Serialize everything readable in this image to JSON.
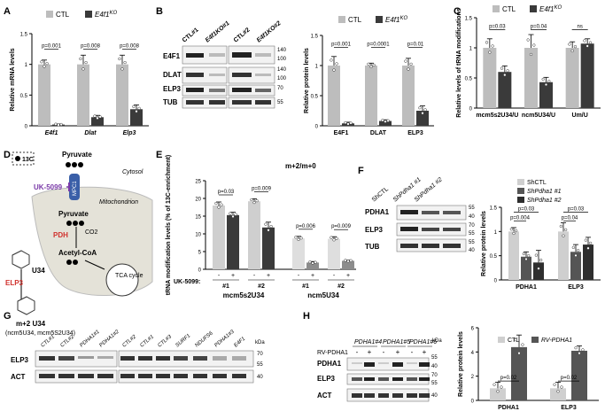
{
  "panels": {
    "A": "A",
    "B": "B",
    "C": "C",
    "D": "D",
    "E": "E",
    "F": "F",
    "G": "G",
    "H": "H"
  },
  "legend": {
    "ctl": "CTL",
    "ko_base": "E4f1",
    "ko_sup": "KO",
    "shctl": "ShCTL",
    "shpdha1_1": "ShPdha1 #1",
    "shpdha1_2": "ShPdha1 #2",
    "rv_pdha1": "RV-PDHA1"
  },
  "units": {
    "kda": "kDa"
  },
  "blot_B": {
    "lanes": [
      "CTL#1",
      "E4f1KO#1",
      "CTL#2",
      "E4f1KO#2"
    ],
    "rows": [
      "E4F1",
      "DLAT",
      "ELP3",
      "TUB"
    ],
    "markers": [
      "140",
      "100",
      "140",
      "100",
      "70",
      "55"
    ]
  },
  "diagram_D": {
    "legend_label": "13C",
    "pyruvate_top": "Pyruvate",
    "cytosol": "Cytosol",
    "inhibitor": "UK-5099",
    "transporter": "MPC1",
    "mitochondrion": "Mitochondrion",
    "pyruvate_mito": "Pyruvate",
    "pdh": "PDH",
    "co2": "CO2",
    "acetyl_coa": "Acetyl-CoA",
    "tca": "TCA cycle",
    "u34": "U34",
    "elp3": "ELP3",
    "product": "m+2 U34",
    "product_detail": "(ncm5U34, mcm5S2U34)"
  },
  "blot_F": {
    "lanes": [
      "ShCTL",
      "ShPdha1 #1",
      "ShPdha1 #2"
    ],
    "rows": [
      "PDHA1",
      "ELP3",
      "TUB"
    ],
    "markers": [
      "55",
      "40",
      "70",
      "55",
      "55",
      "40"
    ]
  },
  "blot_G": {
    "lanes_left": [
      "CTL#1",
      "CTL#2",
      "PDHA1#1",
      "PDHA1#2"
    ],
    "lanes_right": [
      "CTL#2",
      "CTL#1",
      "CTL#3",
      "SURF1",
      "NDUFS6",
      "PDHA1#3",
      "E4F1"
    ],
    "rows": [
      "ELP3",
      "ACT"
    ],
    "markers": [
      "70",
      "55",
      "40"
    ]
  },
  "blot_H": {
    "lanes": [
      "PDHA1#4",
      "PDHA1#5",
      "PDHA1#6"
    ],
    "rv_label": "RV-PDHA1",
    "signs": [
      "-",
      "+",
      "-",
      "+",
      "-",
      "+"
    ],
    "rows": [
      "PDHA1",
      "ELP3",
      "ACT"
    ],
    "markers": [
      "55",
      "40",
      "70",
      "55",
      "40"
    ]
  },
  "chart_data": [
    {
      "panel": "A",
      "type": "bar",
      "ylabel": "Relative mRNA levels",
      "categories": [
        "E4f1",
        "Dlat",
        "Elp3"
      ],
      "ylim": [
        0,
        1.5
      ],
      "yticks": [
        0,
        0.5,
        1.0,
        1.5
      ],
      "series": [
        {
          "name": "CTL",
          "color": "#bdbdbd",
          "values": [
            1.0,
            1.0,
            1.0
          ],
          "err": [
            0.07,
            0.15,
            0.15
          ]
        },
        {
          "name": "E4f1 KO",
          "color": "#3a3a3a",
          "values": [
            0.02,
            0.14,
            0.27
          ],
          "err": [
            0.01,
            0.03,
            0.07
          ]
        }
      ],
      "annotations": [
        "p=0.001",
        "p=0.008",
        "p=0.008"
      ]
    },
    {
      "panel": "B",
      "type": "bar",
      "ylabel": "Relative protein levels",
      "categories": [
        "E4F1",
        "DLAT",
        "ELP3"
      ],
      "ylim": [
        0,
        1.5
      ],
      "yticks": [
        0,
        0.5,
        1.0,
        1.5
      ],
      "series": [
        {
          "name": "CTL",
          "color": "#bdbdbd",
          "values": [
            1.0,
            1.0,
            1.0
          ],
          "err": [
            0.15,
            0.04,
            0.12
          ]
        },
        {
          "name": "E4f1 KO",
          "color": "#3a3a3a",
          "values": [
            0.04,
            0.08,
            0.25
          ],
          "err": [
            0.02,
            0.02,
            0.08
          ]
        }
      ],
      "annotations": [
        "p=0.001",
        "p=0.0001",
        "p=0.01"
      ]
    },
    {
      "panel": "C",
      "type": "bar",
      "ylabel": "Relative levels of tRNA modifications",
      "categories": [
        "mcm5s2U34/U",
        "ncm5U34/U",
        "Um/U"
      ],
      "ylim": [
        0,
        1.5
      ],
      "yticks": [
        0,
        0.5,
        1.0,
        1.5
      ],
      "series": [
        {
          "name": "CTL",
          "color": "#bdbdbd",
          "values": [
            1.0,
            1.0,
            1.0
          ],
          "err": [
            0.15,
            0.22,
            0.1
          ]
        },
        {
          "name": "E4f1 KO",
          "color": "#3a3a3a",
          "values": [
            0.6,
            0.43,
            1.07
          ],
          "err": [
            0.1,
            0.08,
            0.08
          ]
        }
      ],
      "annotations": [
        "p=0.03",
        "p=0.04",
        "ns"
      ]
    },
    {
      "panel": "E",
      "type": "bar",
      "title": "m+2/m+0",
      "ylabel": "tRNA modification levels (% of 13C-enrichment)",
      "ylim": [
        0,
        25
      ],
      "yticks": [
        0,
        5,
        10,
        15,
        20,
        25
      ],
      "xrow_label": "UK-5099:",
      "groups": [
        {
          "label": "mcm5s2U34",
          "pairs": [
            {
              "rep": "#1",
              "minus": 18,
              "plus": 15.3,
              "err_minus": 1.0,
              "err_plus": 0.8
            },
            {
              "rep": "#2",
              "minus": 19.2,
              "plus": 11.8,
              "err_minus": 0.7,
              "err_plus": 1.5
            }
          ]
        },
        {
          "label": "ncm5U34",
          "pairs": [
            {
              "rep": "#1",
              "minus": 8.7,
              "plus": 1.9,
              "err_minus": 0.6,
              "err_plus": 0.3
            },
            {
              "rep": "#2",
              "minus": 8.6,
              "plus": 2.4,
              "err_minus": 0.6,
              "err_plus": 0.2
            }
          ]
        }
      ],
      "colors": {
        "mcm_minus": "#cfcfcf",
        "mcm_plus": "#3a3a3a",
        "ncm_minus": "#dedede",
        "ncm_plus": "#8c8c8c"
      },
      "annotations": [
        "p=0.03",
        "p=0.009",
        "p=0.006",
        "p=0.009"
      ]
    },
    {
      "panel": "F",
      "type": "bar",
      "ylabel": "Relative protein levels",
      "categories": [
        "PDHA1",
        "ELP3"
      ],
      "ylim": [
        0,
        1.5
      ],
      "yticks": [
        0,
        0.5,
        1.0,
        1.5
      ],
      "series": [
        {
          "name": "ShCTL",
          "color": "#cfcfcf",
          "values": [
            1.0,
            1.0
          ],
          "err": [
            0.08,
            0.18
          ]
        },
        {
          "name": "ShPdha1 #1",
          "color": "#555555",
          "values": [
            0.48,
            0.58
          ],
          "err": [
            0.1,
            0.15
          ]
        },
        {
          "name": "ShPdha1 #2",
          "color": "#2e2e2e",
          "values": [
            0.36,
            0.73
          ],
          "err": [
            0.25,
            0.15
          ]
        }
      ],
      "annotations": [
        "p=0.004",
        "p=0.03",
        "p=0.04",
        "p=0.03"
      ]
    },
    {
      "panel": "H",
      "type": "bar",
      "ylabel": "Relative protein levels",
      "categories": [
        "PDHA1",
        "ELP3"
      ],
      "ylim": [
        0,
        6
      ],
      "yticks": [
        0,
        2,
        4,
        6
      ],
      "series": [
        {
          "name": "CTL",
          "color": "#cfcfcf",
          "values": [
            1.0,
            1.0
          ],
          "err": [
            0.5,
            0.5
          ]
        },
        {
          "name": "RV-PDHA1",
          "color": "#555555",
          "values": [
            4.4,
            4.1
          ],
          "err": [
            1.0,
            0.4
          ]
        }
      ],
      "annotations": [
        "p=0.02",
        "p=0.02"
      ]
    }
  ]
}
